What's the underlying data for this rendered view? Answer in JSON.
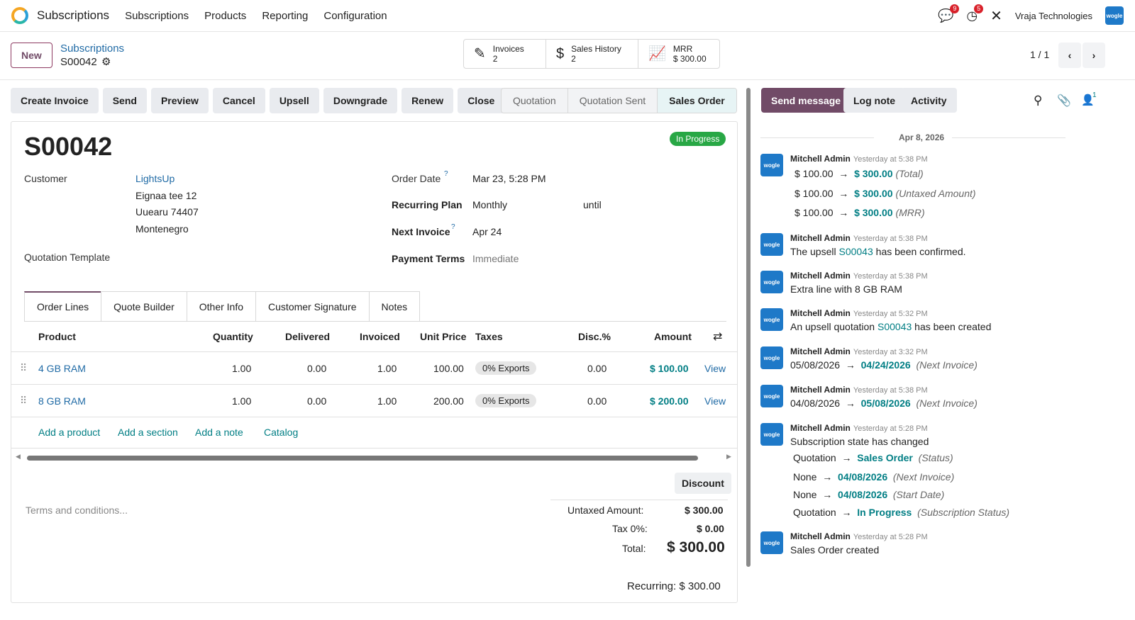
{
  "nav": {
    "app": "Subscriptions",
    "menus": [
      "Subscriptions",
      "Products",
      "Reporting",
      "Configuration"
    ],
    "chat_badge": "9",
    "activity_badge": "5",
    "company": "Vraja Technologies",
    "avatar_text": "wogle"
  },
  "control": {
    "new": "New",
    "breadcrumb": "Subscriptions",
    "record": "S00042",
    "pager": "1 / 1"
  },
  "smart": {
    "invoices_label": "Invoices",
    "invoices_count": "2",
    "sales_label": "Sales History",
    "sales_count": "2",
    "mrr_label": "MRR",
    "mrr_value": "$ 300.00"
  },
  "actions": [
    "Create Invoice",
    "Send",
    "Preview",
    "Cancel",
    "Upsell",
    "Downgrade",
    "Renew",
    "Close"
  ],
  "statusbar": [
    "Quotation",
    "Quotation Sent",
    "Sales Order"
  ],
  "form": {
    "name": "S00042",
    "state": "In Progress",
    "customer_label": "Customer",
    "customer_name": "LightsUp",
    "addr1": "Eignaa tee 12",
    "addr2": "Uuearu 74407",
    "addr3": "Montenegro",
    "template_label": "Quotation Template",
    "order_date_label": "Order Date",
    "order_date": "Mar 23, 5:28 PM",
    "plan_label": "Recurring Plan",
    "plan": "Monthly",
    "until": "until",
    "next_label": "Next Invoice",
    "next": "Apr 24",
    "terms_label": "Payment Terms",
    "terms": "Immediate",
    "help": "?"
  },
  "tabs": [
    "Order Lines",
    "Quote Builder",
    "Other Info",
    "Customer Signature",
    "Notes"
  ],
  "table": {
    "headers": [
      "Product",
      "Quantity",
      "Delivered",
      "Invoiced",
      "Unit Price",
      "Taxes",
      "Disc.%",
      "Amount"
    ],
    "rows": [
      {
        "product": "4 GB RAM",
        "qty": "1.00",
        "delivered": "0.00",
        "invoiced": "1.00",
        "price": "100.00",
        "tax": "0% Exports",
        "disc": "0.00",
        "amount": "$ 100.00",
        "view": "View"
      },
      {
        "product": "8 GB RAM",
        "qty": "1.00",
        "delivered": "0.00",
        "invoiced": "1.00",
        "price": "200.00",
        "tax": "0% Exports",
        "disc": "0.00",
        "amount": "$ 200.00",
        "view": "View"
      }
    ],
    "add_product": "Add a product",
    "add_section": "Add a section",
    "add_note": "Add a note",
    "catalog": "Catalog"
  },
  "totals": {
    "discount": "Discount",
    "terms_placeholder": "Terms and conditions...",
    "untaxed_label": "Untaxed Amount:",
    "untaxed": "$ 300.00",
    "tax_label": "Tax 0%:",
    "tax": "$ 0.00",
    "total_label": "Total:",
    "total": "$ 300.00",
    "recurring": "Recurring: $ 300.00"
  },
  "chatter": {
    "send": "Send message",
    "log": "Log note",
    "activity": "Activity",
    "followers": "1",
    "date": "Apr 8, 2026",
    "m1": {
      "author": "Mitchell Admin",
      "time": "Yesterday at 5:38 PM",
      "l1a": "$ 100.00",
      "l1b": "$ 300.00",
      "l1c": "(Total)",
      "l2a": "$ 100.00",
      "l2b": "$ 300.00",
      "l2c": "(Untaxed Amount)",
      "l3a": "$ 100.00",
      "l3b": "$ 300.00",
      "l3c": "(MRR)"
    },
    "m2": {
      "author": "Mitchell Admin",
      "time": "Yesterday at 5:38 PM",
      "pre": "The upsell",
      "ref": "S00043",
      "post": "has been confirmed."
    },
    "m3": {
      "author": "Mitchell Admin",
      "time": "Yesterday at 5:38 PM",
      "text": "Extra line with 8 GB RAM"
    },
    "m4": {
      "author": "Mitchell Admin",
      "time": "Yesterday at 5:32 PM",
      "pre": "An upsell quotation",
      "ref": "S00043",
      "post": "has been created"
    },
    "m5": {
      "author": "Mitchell Admin",
      "time": "Yesterday at 3:32 PM",
      "a": "05/08/2026",
      "b": "04/24/2026",
      "c": "(Next Invoice)"
    },
    "m6": {
      "author": "Mitchell Admin",
      "time": "Yesterday at 5:38 PM",
      "a": "04/08/2026",
      "b": "05/08/2026",
      "c": "(Next Invoice)"
    },
    "m7": {
      "author": "Mitchell Admin",
      "time": "Yesterday at 5:28 PM",
      "text": "Subscription state has changed",
      "r1a": "Quotation",
      "r1b": "Sales Order",
      "r1c": "(Status)",
      "r2a": "None",
      "r2b": "04/08/2026",
      "r2c": "(Next Invoice)",
      "r3a": "None",
      "r3b": "04/08/2026",
      "r3c": "(Start Date)",
      "r4a": "Quotation",
      "r4b": "In Progress",
      "r4c": "(Subscription Status)"
    },
    "m8": {
      "author": "Mitchell Admin",
      "time": "Yesterday at 5:28 PM",
      "text": "Sales Order created"
    }
  }
}
